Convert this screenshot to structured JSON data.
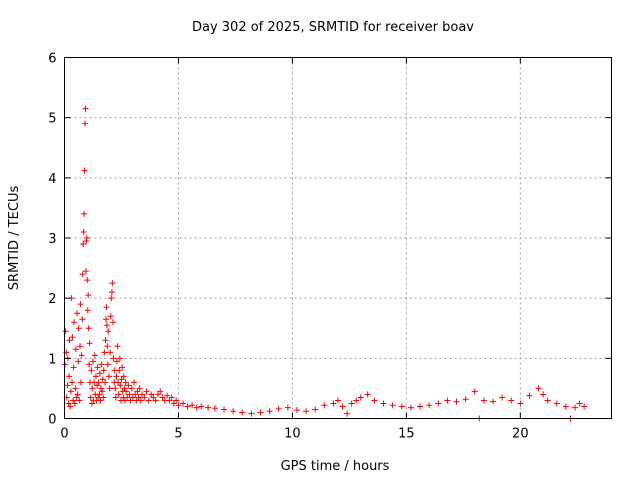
{
  "chart_data": {
    "type": "scatter",
    "title": "Day 302 of 2025, SRMTID for receiver boav",
    "xlabel": "GPS time / hours",
    "ylabel": "SRMTID / TECUs",
    "xlim": [
      0,
      24
    ],
    "ylim": [
      0,
      6
    ],
    "xticks": [
      0,
      5,
      10,
      15,
      20
    ],
    "yticks": [
      0,
      1,
      2,
      3,
      4,
      5,
      6
    ],
    "grid": true,
    "marker": "+",
    "color": "#ff0000",
    "series": [
      {
        "name": "SRMTID",
        "points": [
          [
            0.02,
            0.9
          ],
          [
            0.05,
            1.45
          ],
          [
            0.08,
            1.1
          ],
          [
            0.1,
            0.35
          ],
          [
            0.13,
            0.55
          ],
          [
            0.15,
            1.0
          ],
          [
            0.18,
            0.25
          ],
          [
            0.2,
            0.7
          ],
          [
            0.22,
            1.3
          ],
          [
            0.25,
            0.2
          ],
          [
            0.28,
            0.45
          ],
          [
            0.3,
            2.0
          ],
          [
            0.33,
            0.6
          ],
          [
            0.35,
            1.35
          ],
          [
            0.38,
            0.3
          ],
          [
            0.4,
            0.85
          ],
          [
            0.42,
            1.6
          ],
          [
            0.45,
            0.25
          ],
          [
            0.48,
            0.5
          ],
          [
            0.5,
            1.15
          ],
          [
            0.52,
            0.35
          ],
          [
            0.55,
            1.75
          ],
          [
            0.58,
            0.4
          ],
          [
            0.6,
            0.95
          ],
          [
            0.62,
            1.5
          ],
          [
            0.65,
            0.3
          ],
          [
            0.68,
            1.2
          ],
          [
            0.7,
            1.9
          ],
          [
            0.72,
            0.6
          ],
          [
            0.75,
            1.05
          ],
          [
            0.78,
            1.65
          ],
          [
            0.8,
            2.4
          ],
          [
            0.82,
            2.9
          ],
          [
            0.84,
            3.1
          ],
          [
            0.86,
            3.4
          ],
          [
            0.88,
            4.12
          ],
          [
            0.9,
            4.9
          ],
          [
            0.92,
            5.15
          ],
          [
            0.94,
            2.45
          ],
          [
            0.96,
            2.95
          ],
          [
            0.98,
            3.0
          ],
          [
            1.0,
            2.3
          ],
          [
            1.02,
            1.8
          ],
          [
            1.04,
            2.05
          ],
          [
            1.06,
            1.5
          ],
          [
            1.08,
            0.9
          ],
          [
            1.1,
            1.25
          ],
          [
            1.12,
            0.6
          ],
          [
            1.15,
            0.35
          ],
          [
            1.18,
            0.8
          ],
          [
            1.2,
            0.25
          ],
          [
            1.22,
            0.5
          ],
          [
            1.25,
            0.95
          ],
          [
            1.28,
            0.3
          ],
          [
            1.3,
            0.6
          ],
          [
            1.33,
            1.05
          ],
          [
            1.35,
            0.4
          ],
          [
            1.38,
            0.7
          ],
          [
            1.4,
            0.3
          ],
          [
            1.43,
            0.55
          ],
          [
            1.45,
            0.85
          ],
          [
            1.48,
            0.35
          ],
          [
            1.5,
            0.6
          ],
          [
            1.53,
            0.4
          ],
          [
            1.55,
            0.75
          ],
          [
            1.58,
            0.3
          ],
          [
            1.6,
            0.5
          ],
          [
            1.62,
            0.9
          ],
          [
            1.65,
            0.45
          ],
          [
            1.68,
            0.65
          ],
          [
            1.7,
            0.35
          ],
          [
            1.72,
            0.8
          ],
          [
            1.75,
            1.1
          ],
          [
            1.78,
            0.6
          ],
          [
            1.8,
            1.3
          ],
          [
            1.82,
            1.65
          ],
          [
            1.84,
            1.85
          ],
          [
            1.86,
            1.55
          ],
          [
            1.88,
            1.2
          ],
          [
            1.9,
            0.9
          ],
          [
            1.92,
            1.45
          ],
          [
            1.95,
            0.7
          ],
          [
            1.98,
            0.5
          ],
          [
            2.0,
            1.1
          ],
          [
            2.03,
            1.7
          ],
          [
            2.05,
            2.0
          ],
          [
            2.08,
            2.1
          ],
          [
            2.1,
            2.25
          ],
          [
            2.13,
            1.6
          ],
          [
            2.15,
            1.0
          ],
          [
            2.18,
            0.6
          ],
          [
            2.2,
            0.8
          ],
          [
            2.23,
            0.5
          ],
          [
            2.25,
            0.35
          ],
          [
            2.28,
            0.7
          ],
          [
            2.3,
            0.95
          ],
          [
            2.33,
            1.2
          ],
          [
            2.35,
            0.6
          ],
          [
            2.38,
            0.4
          ],
          [
            2.4,
            0.8
          ],
          [
            2.43,
            1.0
          ],
          [
            2.45,
            0.55
          ],
          [
            2.48,
            0.3
          ],
          [
            2.5,
            0.65
          ],
          [
            2.53,
            0.85
          ],
          [
            2.55,
            0.45
          ],
          [
            2.58,
            0.35
          ],
          [
            2.6,
            0.7
          ],
          [
            2.63,
            0.5
          ],
          [
            2.65,
            0.3
          ],
          [
            2.68,
            0.6
          ],
          [
            2.7,
            0.45
          ],
          [
            2.75,
            0.35
          ],
          [
            2.8,
            0.55
          ],
          [
            2.85,
            0.4
          ],
          [
            2.9,
            0.3
          ],
          [
            2.95,
            0.5
          ],
          [
            3.0,
            0.35
          ],
          [
            3.05,
            0.6
          ],
          [
            3.1,
            0.4
          ],
          [
            3.15,
            0.3
          ],
          [
            3.2,
            0.45
          ],
          [
            3.25,
            0.35
          ],
          [
            3.3,
            0.5
          ],
          [
            3.35,
            0.3
          ],
          [
            3.4,
            0.4
          ],
          [
            3.5,
            0.35
          ],
          [
            3.6,
            0.45
          ],
          [
            3.7,
            0.3
          ],
          [
            3.8,
            0.4
          ],
          [
            3.9,
            0.35
          ],
          [
            4.0,
            0.3
          ],
          [
            4.1,
            0.4
          ],
          [
            4.2,
            0.45
          ],
          [
            4.3,
            0.35
          ],
          [
            4.4,
            0.3
          ],
          [
            4.5,
            0.38
          ],
          [
            4.6,
            0.3
          ],
          [
            4.7,
            0.35
          ],
          [
            4.8,
            0.25
          ],
          [
            4.9,
            0.3
          ],
          [
            5.0,
            0.22
          ],
          [
            5.2,
            0.25
          ],
          [
            5.4,
            0.2
          ],
          [
            5.6,
            0.22
          ],
          [
            5.8,
            0.18
          ],
          [
            6.0,
            0.2
          ],
          [
            6.3,
            0.18
          ],
          [
            6.6,
            0.17
          ],
          [
            7.0,
            0.15
          ],
          [
            7.4,
            0.12
          ],
          [
            7.8,
            0.1
          ],
          [
            8.2,
            0.08
          ],
          [
            8.6,
            0.1
          ],
          [
            9.0,
            0.12
          ],
          [
            9.4,
            0.16
          ],
          [
            9.8,
            0.18
          ],
          [
            10.2,
            0.14
          ],
          [
            10.6,
            0.12
          ],
          [
            11.0,
            0.15
          ],
          [
            11.4,
            0.22
          ],
          [
            11.8,
            0.25
          ],
          [
            12.0,
            0.3
          ],
          [
            12.2,
            0.2
          ],
          [
            12.4,
            0.08
          ],
          [
            12.6,
            0.25
          ],
          [
            12.8,
            0.3
          ],
          [
            13.0,
            0.35
          ],
          [
            13.3,
            0.4
          ],
          [
            13.6,
            0.3
          ],
          [
            14.0,
            0.25
          ],
          [
            14.4,
            0.22
          ],
          [
            14.8,
            0.2
          ],
          [
            15.2,
            0.18
          ],
          [
            15.6,
            0.2
          ],
          [
            16.0,
            0.22
          ],
          [
            16.4,
            0.25
          ],
          [
            16.8,
            0.3
          ],
          [
            17.2,
            0.28
          ],
          [
            17.6,
            0.32
          ],
          [
            18.0,
            0.45
          ],
          [
            18.2,
            0.0
          ],
          [
            18.4,
            0.3
          ],
          [
            18.8,
            0.28
          ],
          [
            19.2,
            0.35
          ],
          [
            19.6,
            0.3
          ],
          [
            20.0,
            0.25
          ],
          [
            20.4,
            0.38
          ],
          [
            20.8,
            0.5
          ],
          [
            21.0,
            0.4
          ],
          [
            21.2,
            0.3
          ],
          [
            21.6,
            0.25
          ],
          [
            22.0,
            0.2
          ],
          [
            22.2,
            0.0
          ],
          [
            22.4,
            0.18
          ],
          [
            22.6,
            0.25
          ],
          [
            22.8,
            0.2
          ]
        ]
      }
    ]
  }
}
